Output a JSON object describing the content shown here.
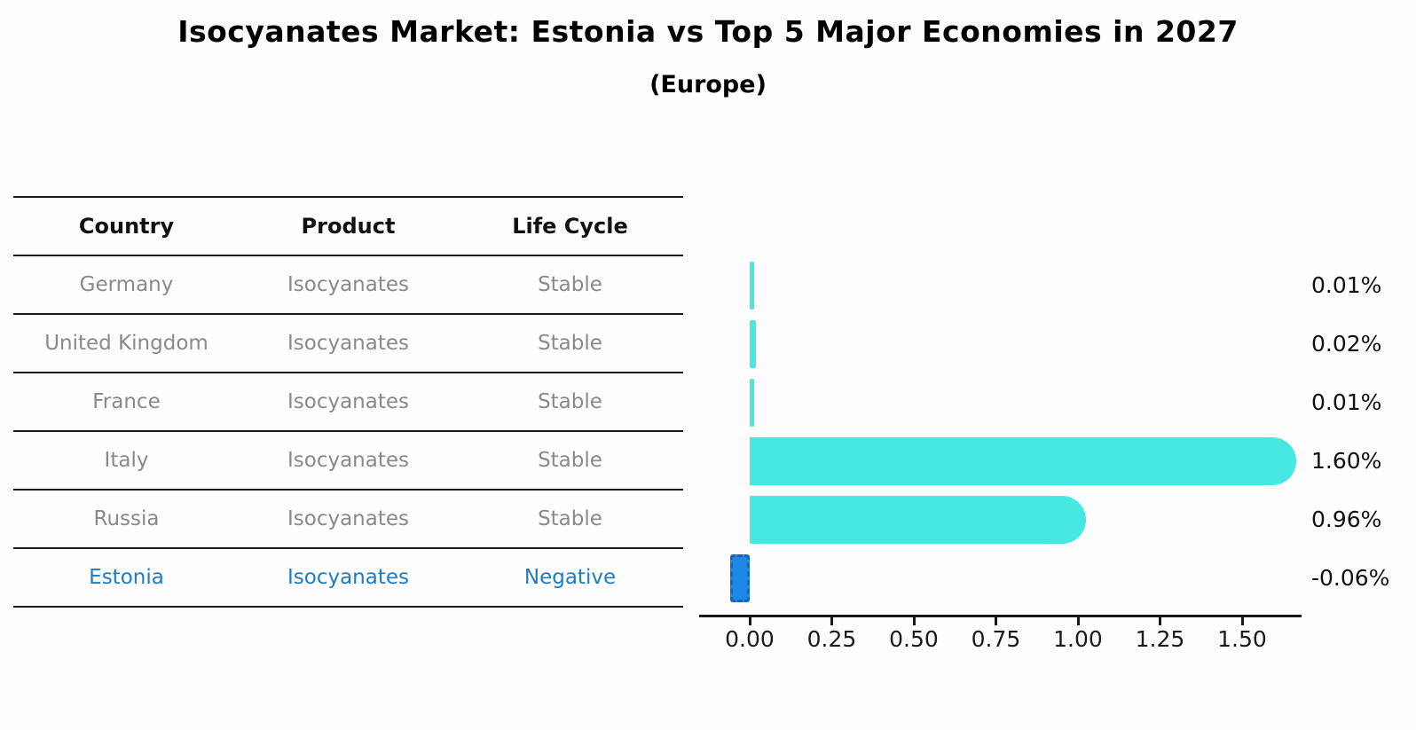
{
  "header": {
    "title": "Isocyanates Market: Estonia vs Top 5 Major Economies in 2027",
    "subtitle": "(Europe)"
  },
  "table": {
    "headers": [
      "Country",
      "Product",
      "Life Cycle"
    ],
    "rows": [
      {
        "country": "Germany",
        "product": "Isocyanates",
        "life_cycle": "Stable",
        "highlight": false
      },
      {
        "country": "United Kingdom",
        "product": "Isocyanates",
        "life_cycle": "Stable",
        "highlight": false
      },
      {
        "country": "France",
        "product": "Isocyanates",
        "life_cycle": "Stable",
        "highlight": false
      },
      {
        "country": "Italy",
        "product": "Isocyanates",
        "life_cycle": "Stable",
        "highlight": false
      },
      {
        "country": "Russia",
        "product": "Isocyanates",
        "life_cycle": "Stable",
        "highlight": false
      },
      {
        "country": "Estonia",
        "product": "Isocyanates",
        "life_cycle": "Negative",
        "highlight": true
      }
    ]
  },
  "chart_data": {
    "type": "bar",
    "orientation": "horizontal",
    "title": "Isocyanates Market: Estonia vs Top 5 Major Economies in 2027 (Europe)",
    "xlabel": "",
    "ylabel": "",
    "categories": [
      "Germany",
      "United Kingdom",
      "France",
      "Italy",
      "Russia",
      "Estonia"
    ],
    "values": [
      0.01,
      0.02,
      0.01,
      1.6,
      0.96,
      -0.06
    ],
    "value_labels": [
      "0.01%",
      "0.02%",
      "0.01%",
      "1.60%",
      "0.96%",
      "-0.06%"
    ],
    "x_tick_labels": [
      "0.00",
      "0.25",
      "0.50",
      "0.75",
      "1.00",
      "1.25",
      "1.50"
    ],
    "x_tick_values": [
      0,
      0.25,
      0.5,
      0.75,
      1.0,
      1.25,
      1.5
    ],
    "xlim": [
      -0.155,
      1.68
    ],
    "grid": false,
    "legend": "none",
    "highlight_index": 5
  },
  "colors": {
    "bar_cyan": "#48E8E2",
    "bar_blue": "#1E88E5",
    "bar_blue_border": "#1565C0",
    "row_text_gray": "#8a8a8a",
    "highlight_text_blue": "#1f7bc4",
    "axis_black": "#1a1a1a"
  }
}
